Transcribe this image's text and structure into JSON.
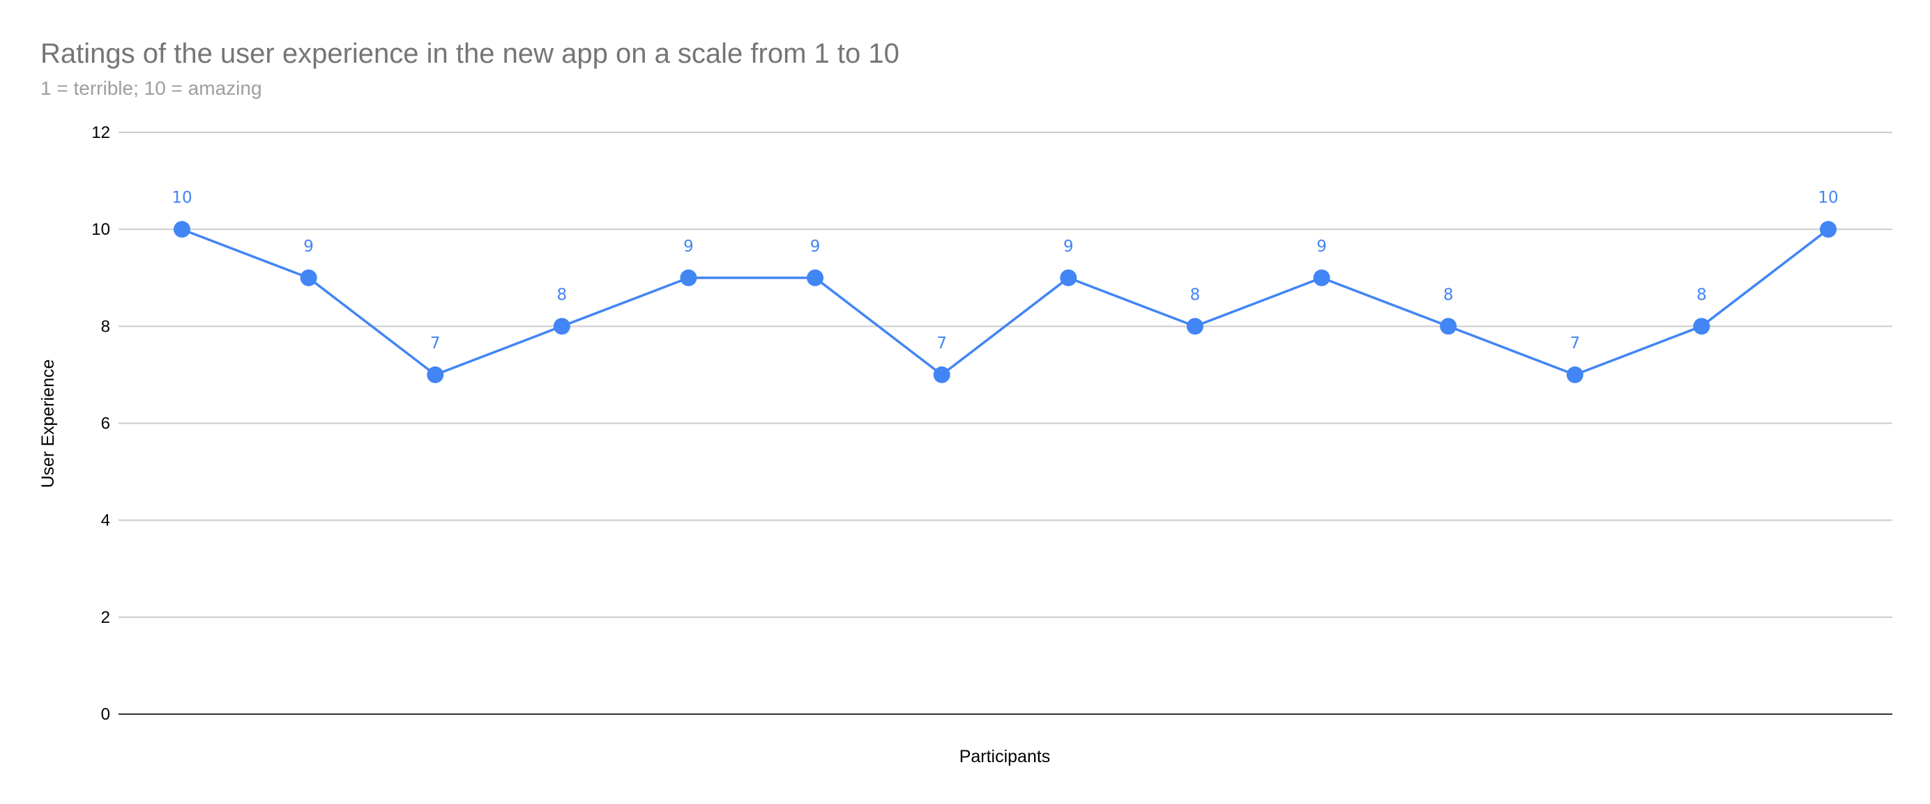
{
  "chart_data": {
    "type": "line",
    "title": "Ratings of the user experience in the new app on a scale from 1 to 10",
    "subtitle": "1 = terrible; 10 = amazing",
    "xlabel": "Participants",
    "ylabel": "User Experience",
    "ylim": [
      0,
      12
    ],
    "yticks": [
      0,
      2,
      4,
      6,
      8,
      10,
      12
    ],
    "grid": true,
    "legend": "none",
    "data_labels": true,
    "series": [
      {
        "color": "#4285F4",
        "values": [
          10,
          9,
          7,
          8,
          9,
          9,
          7,
          9,
          8,
          9,
          8,
          7,
          8,
          10
        ]
      }
    ]
  }
}
